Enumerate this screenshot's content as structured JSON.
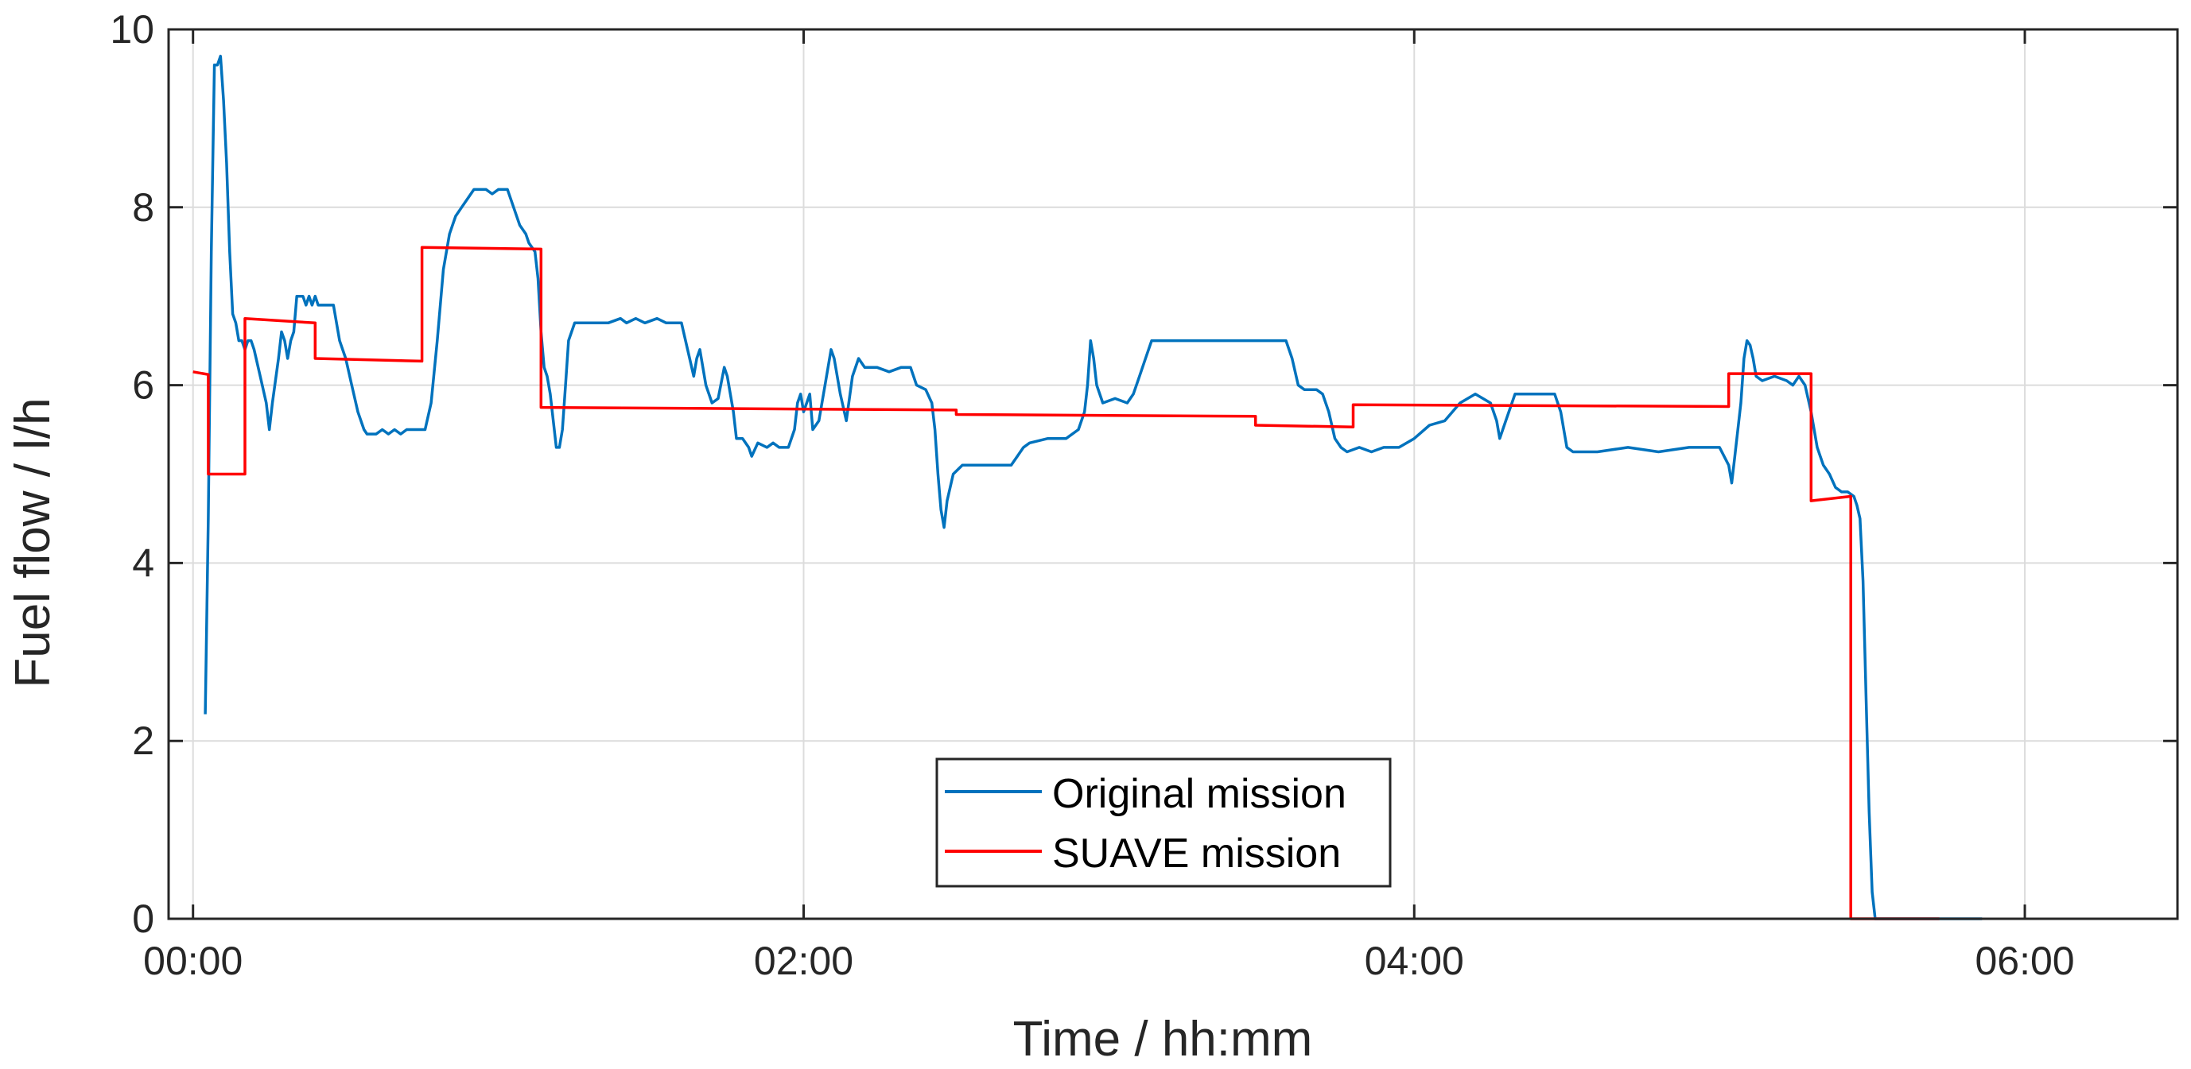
{
  "chart_data": {
    "type": "line",
    "xlabel": "Time / hh:mm",
    "ylabel": "Fuel flow / l/h",
    "xlim": [
      -0.08,
      6.5
    ],
    "ylim": [
      0,
      10
    ],
    "x_unit": "hours",
    "x_ticks": [
      0,
      2,
      4,
      6
    ],
    "x_tick_labels": [
      "00:00",
      "02:00",
      "04:00",
      "06:00"
    ],
    "y_ticks": [
      0,
      2,
      4,
      6,
      8,
      10
    ],
    "y_tick_labels": [
      "0",
      "2",
      "4",
      "6",
      "8",
      "10"
    ],
    "grid": true,
    "legend": {
      "placement": "bottom-center"
    },
    "colors": {
      "original": "#0072BD",
      "suave": "#FF0000"
    },
    "series": [
      {
        "name": "Original mission",
        "color": "#0072BD",
        "points": [
          [
            0.04,
            2.3
          ],
          [
            0.05,
            4.5
          ],
          [
            0.06,
            7.5
          ],
          [
            0.07,
            9.6
          ],
          [
            0.08,
            9.6
          ],
          [
            0.09,
            9.7
          ],
          [
            0.1,
            9.2
          ],
          [
            0.11,
            8.5
          ],
          [
            0.12,
            7.5
          ],
          [
            0.13,
            6.8
          ],
          [
            0.14,
            6.7
          ],
          [
            0.15,
            6.5
          ],
          [
            0.16,
            6.5
          ],
          [
            0.17,
            6.4
          ],
          [
            0.18,
            6.5
          ],
          [
            0.19,
            6.5
          ],
          [
            0.2,
            6.4
          ],
          [
            0.22,
            6.1
          ],
          [
            0.24,
            5.8
          ],
          [
            0.25,
            5.5
          ],
          [
            0.26,
            5.8
          ],
          [
            0.28,
            6.3
          ],
          [
            0.29,
            6.6
          ],
          [
            0.3,
            6.5
          ],
          [
            0.31,
            6.3
          ],
          [
            0.32,
            6.5
          ],
          [
            0.33,
            6.6
          ],
          [
            0.34,
            7.0
          ],
          [
            0.36,
            7.0
          ],
          [
            0.37,
            6.9
          ],
          [
            0.38,
            7.0
          ],
          [
            0.39,
            6.9
          ],
          [
            0.4,
            7.0
          ],
          [
            0.41,
            6.9
          ],
          [
            0.42,
            6.9
          ],
          [
            0.44,
            6.9
          ],
          [
            0.46,
            6.9
          ],
          [
            0.48,
            6.5
          ],
          [
            0.5,
            6.3
          ],
          [
            0.52,
            6.0
          ],
          [
            0.54,
            5.7
          ],
          [
            0.56,
            5.5
          ],
          [
            0.57,
            5.45
          ],
          [
            0.6,
            5.45
          ],
          [
            0.62,
            5.5
          ],
          [
            0.64,
            5.45
          ],
          [
            0.66,
            5.5
          ],
          [
            0.68,
            5.45
          ],
          [
            0.7,
            5.5
          ],
          [
            0.73,
            5.5
          ],
          [
            0.76,
            5.5
          ],
          [
            0.78,
            5.8
          ],
          [
            0.8,
            6.5
          ],
          [
            0.82,
            7.3
          ],
          [
            0.84,
            7.7
          ],
          [
            0.86,
            7.9
          ],
          [
            0.88,
            8.0
          ],
          [
            0.9,
            8.1
          ],
          [
            0.92,
            8.2
          ],
          [
            0.96,
            8.2
          ],
          [
            0.98,
            8.15
          ],
          [
            1.0,
            8.2
          ],
          [
            1.03,
            8.2
          ],
          [
            1.05,
            8.0
          ],
          [
            1.07,
            7.8
          ],
          [
            1.09,
            7.7
          ],
          [
            1.1,
            7.6
          ],
          [
            1.12,
            7.5
          ],
          [
            1.13,
            7.2
          ],
          [
            1.14,
            6.6
          ],
          [
            1.15,
            6.2
          ],
          [
            1.16,
            6.1
          ],
          [
            1.17,
            5.9
          ],
          [
            1.18,
            5.6
          ],
          [
            1.19,
            5.3
          ],
          [
            1.2,
            5.3
          ],
          [
            1.21,
            5.5
          ],
          [
            1.22,
            6.0
          ],
          [
            1.23,
            6.5
          ],
          [
            1.25,
            6.7
          ],
          [
            1.28,
            6.7
          ],
          [
            1.32,
            6.7
          ],
          [
            1.36,
            6.7
          ],
          [
            1.4,
            6.75
          ],
          [
            1.42,
            6.7
          ],
          [
            1.45,
            6.75
          ],
          [
            1.48,
            6.7
          ],
          [
            1.52,
            6.75
          ],
          [
            1.55,
            6.7
          ],
          [
            1.58,
            6.7
          ],
          [
            1.6,
            6.7
          ],
          [
            1.62,
            6.4
          ],
          [
            1.64,
            6.1
          ],
          [
            1.65,
            6.3
          ],
          [
            1.66,
            6.4
          ],
          [
            1.67,
            6.2
          ],
          [
            1.68,
            6.0
          ],
          [
            1.7,
            5.8
          ],
          [
            1.72,
            5.85
          ],
          [
            1.74,
            6.2
          ],
          [
            1.75,
            6.1
          ],
          [
            1.77,
            5.7
          ],
          [
            1.78,
            5.4
          ],
          [
            1.8,
            5.4
          ],
          [
            1.82,
            5.3
          ],
          [
            1.83,
            5.2
          ],
          [
            1.85,
            5.35
          ],
          [
            1.88,
            5.3
          ],
          [
            1.9,
            5.35
          ],
          [
            1.92,
            5.3
          ],
          [
            1.95,
            5.3
          ],
          [
            1.97,
            5.5
          ],
          [
            1.98,
            5.8
          ],
          [
            1.99,
            5.9
          ],
          [
            2.0,
            5.7
          ],
          [
            2.02,
            5.9
          ],
          [
            2.03,
            5.5
          ],
          [
            2.05,
            5.6
          ],
          [
            2.07,
            6.0
          ],
          [
            2.09,
            6.4
          ],
          [
            2.1,
            6.3
          ],
          [
            2.12,
            5.9
          ],
          [
            2.14,
            5.6
          ],
          [
            2.16,
            6.1
          ],
          [
            2.18,
            6.3
          ],
          [
            2.2,
            6.2
          ],
          [
            2.24,
            6.2
          ],
          [
            2.28,
            6.15
          ],
          [
            2.32,
            6.2
          ],
          [
            2.35,
            6.2
          ],
          [
            2.37,
            6.0
          ],
          [
            2.4,
            5.95
          ],
          [
            2.42,
            5.8
          ],
          [
            2.43,
            5.5
          ],
          [
            2.44,
            5.0
          ],
          [
            2.45,
            4.6
          ],
          [
            2.46,
            4.4
          ],
          [
            2.47,
            4.7
          ],
          [
            2.49,
            5.0
          ],
          [
            2.52,
            5.1
          ],
          [
            2.6,
            5.1
          ],
          [
            2.68,
            5.1
          ],
          [
            2.7,
            5.2
          ],
          [
            2.72,
            5.3
          ],
          [
            2.74,
            5.35
          ],
          [
            2.8,
            5.4
          ],
          [
            2.86,
            5.4
          ],
          [
            2.9,
            5.5
          ],
          [
            2.92,
            5.7
          ],
          [
            2.93,
            6.0
          ],
          [
            2.94,
            6.5
          ],
          [
            2.95,
            6.3
          ],
          [
            2.96,
            6.0
          ],
          [
            2.98,
            5.8
          ],
          [
            3.02,
            5.85
          ],
          [
            3.06,
            5.8
          ],
          [
            3.08,
            5.9
          ],
          [
            3.1,
            6.1
          ],
          [
            3.12,
            6.3
          ],
          [
            3.14,
            6.5
          ],
          [
            3.3,
            6.5
          ],
          [
            3.5,
            6.5
          ],
          [
            3.58,
            6.5
          ],
          [
            3.6,
            6.3
          ],
          [
            3.62,
            6.0
          ],
          [
            3.64,
            5.95
          ],
          [
            3.68,
            5.95
          ],
          [
            3.7,
            5.9
          ],
          [
            3.72,
            5.7
          ],
          [
            3.74,
            5.4
          ],
          [
            3.76,
            5.3
          ],
          [
            3.78,
            5.25
          ],
          [
            3.82,
            5.3
          ],
          [
            3.86,
            5.25
          ],
          [
            3.9,
            5.3
          ],
          [
            3.95,
            5.3
          ],
          [
            4.0,
            5.4
          ],
          [
            4.05,
            5.55
          ],
          [
            4.1,
            5.6
          ],
          [
            4.15,
            5.8
          ],
          [
            4.2,
            5.9
          ],
          [
            4.25,
            5.8
          ],
          [
            4.27,
            5.6
          ],
          [
            4.28,
            5.4
          ],
          [
            4.3,
            5.6
          ],
          [
            4.33,
            5.9
          ],
          [
            4.4,
            5.9
          ],
          [
            4.46,
            5.9
          ],
          [
            4.48,
            5.7
          ],
          [
            4.5,
            5.3
          ],
          [
            4.52,
            5.25
          ],
          [
            4.6,
            5.25
          ],
          [
            4.7,
            5.3
          ],
          [
            4.8,
            5.25
          ],
          [
            4.9,
            5.3
          ],
          [
            5.0,
            5.3
          ],
          [
            5.03,
            5.1
          ],
          [
            5.04,
            4.9
          ],
          [
            5.05,
            5.2
          ],
          [
            5.07,
            5.8
          ],
          [
            5.08,
            6.3
          ],
          [
            5.09,
            6.5
          ],
          [
            5.1,
            6.45
          ],
          [
            5.11,
            6.3
          ],
          [
            5.12,
            6.1
          ],
          [
            5.14,
            6.05
          ],
          [
            5.18,
            6.1
          ],
          [
            5.22,
            6.05
          ],
          [
            5.24,
            6.0
          ],
          [
            5.26,
            6.1
          ],
          [
            5.28,
            6.0
          ],
          [
            5.3,
            5.7
          ],
          [
            5.32,
            5.3
          ],
          [
            5.34,
            5.1
          ],
          [
            5.36,
            5.0
          ],
          [
            5.38,
            4.85
          ],
          [
            5.4,
            4.8
          ],
          [
            5.42,
            4.8
          ],
          [
            5.44,
            4.75
          ],
          [
            5.45,
            4.65
          ],
          [
            5.46,
            4.5
          ],
          [
            5.47,
            3.8
          ],
          [
            5.48,
            2.5
          ],
          [
            5.49,
            1.2
          ],
          [
            5.5,
            0.3
          ],
          [
            5.51,
            0.0
          ],
          [
            5.56,
            0.0
          ],
          [
            5.64,
            0.0
          ],
          [
            5.7,
            0.0
          ],
          [
            5.86,
            0.0
          ]
        ]
      },
      {
        "name": "SUAVE mission",
        "color": "#FF0000",
        "points": [
          [
            0.0,
            6.15
          ],
          [
            0.05,
            6.12
          ],
          [
            0.05,
            5.0
          ],
          [
            0.17,
            5.0
          ],
          [
            0.17,
            6.75
          ],
          [
            0.4,
            6.7
          ],
          [
            0.4,
            6.3
          ],
          [
            0.75,
            6.27
          ],
          [
            0.75,
            7.55
          ],
          [
            1.14,
            7.53
          ],
          [
            1.14,
            5.75
          ],
          [
            2.5,
            5.72
          ],
          [
            2.5,
            5.67
          ],
          [
            3.48,
            5.65
          ],
          [
            3.48,
            5.55
          ],
          [
            3.8,
            5.53
          ],
          [
            3.8,
            5.78
          ],
          [
            5.03,
            5.76
          ],
          [
            5.03,
            6.13
          ],
          [
            5.3,
            6.13
          ],
          [
            5.3,
            4.7
          ],
          [
            5.43,
            4.75
          ],
          [
            5.43,
            0.0
          ],
          [
            5.72,
            0.0
          ]
        ]
      }
    ]
  }
}
